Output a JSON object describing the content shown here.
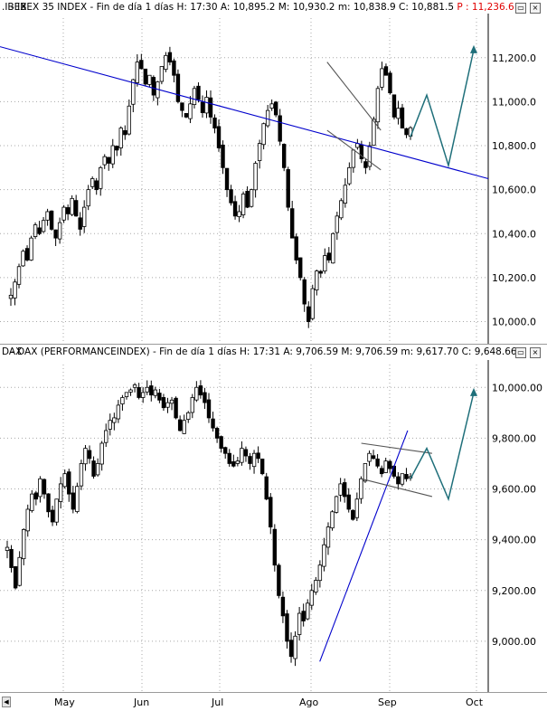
{
  "panels": [
    {
      "id": "ibex",
      "header": {
        "symbol": ".IBEX",
        "text": " - IBEX 35 INDEX - Fin de día 1 días  H: 17:30  A: 10,895.2  M: 10,930.2  m: 10,838.9  C: 10,881.5  ",
        "target": "P : 11,236.6"
      }
    },
    {
      "id": "dax",
      "header": {
        "symbol": "DAX",
        "text": " - DAX (PERFORMANCEINDEX) - Fin de día 1 días  H: 17:31  A: 9,706.59  M: 9,706.59  m: 9,617.70  C: 9,648.66",
        "target": ""
      }
    }
  ],
  "x_axis": {
    "labels": [
      "May",
      "Jun",
      "Jul",
      "Ago",
      "Sep",
      "Oct"
    ]
  },
  "chart_data": [
    {
      "type": "candlestick",
      "title": ".IBEX - IBEX 35 INDEX",
      "x_axis_labels": [
        "May",
        "Jun",
        "Jul",
        "Ago",
        "Sep",
        "Oct"
      ],
      "y_tick_labels": [
        "10,000.0",
        "10,200.0",
        "10,400.0",
        "10,600.0",
        "10,800.0",
        "11,000.0",
        "11,200.0"
      ],
      "ylim": [
        9920,
        11380
      ],
      "grid": true,
      "colors": {
        "up": "#ffffff",
        "down": "#000000",
        "trendline": "#0000cc",
        "channel": "#555555",
        "projection": "#1f6f7a"
      },
      "close_series": [
        10120,
        10180,
        10250,
        10320,
        10280,
        10380,
        10440,
        10400,
        10460,
        10500,
        10420,
        10380,
        10450,
        10520,
        10490,
        10560,
        10480,
        10420,
        10520,
        10600,
        10650,
        10600,
        10700,
        10750,
        10720,
        10800,
        10780,
        10880,
        10850,
        10980,
        11100,
        11180,
        11150,
        11080,
        11120,
        11030,
        11090,
        11160,
        11210,
        11180,
        11120,
        11000,
        10960,
        10930,
        10990,
        11060,
        11010,
        10950,
        11020,
        10930,
        10880,
        10790,
        10700,
        10600,
        10540,
        10480,
        10500,
        10580,
        10520,
        10600,
        10720,
        10810,
        10900,
        10960,
        10990,
        10940,
        10820,
        10700,
        10520,
        10380,
        10280,
        10200,
        10080,
        10000,
        10150,
        10230,
        10220,
        10300,
        10280,
        10400,
        10480,
        10550,
        10620,
        10700,
        10780,
        10810,
        10740,
        10700,
        10800,
        10920,
        11060,
        11150,
        11120,
        11040,
        10930,
        10970,
        10880,
        10850,
        10881.5
      ],
      "annotations": {
        "trendline": [
          [
            0.0,
            11250
          ],
          [
            1.0,
            10650
          ]
        ],
        "channel_upper": [
          [
            0.67,
            11180
          ],
          [
            0.78,
            10870
          ]
        ],
        "channel_lower": [
          [
            0.67,
            10870
          ],
          [
            0.78,
            10690
          ]
        ],
        "projection": [
          10840,
          11030,
          10710,
          11236.6
        ]
      }
    },
    {
      "type": "candlestick",
      "title": "DAX - DAX (PERFORMANCEINDEX)",
      "x_axis_labels": [
        "May",
        "Jun",
        "Jul",
        "Ago",
        "Sep",
        "Oct"
      ],
      "y_tick_labels": [
        "9,000.00",
        "9,200.00",
        "9,400.00",
        "9,600.00",
        "9,800.00",
        "10,000.00"
      ],
      "ylim": [
        8850,
        10090
      ],
      "grid": true,
      "colors": {
        "up": "#ffffff",
        "down": "#000000",
        "trendline": "#0000cc",
        "channel": "#555555",
        "projection": "#1f6f7a"
      },
      "close_series": [
        9370,
        9290,
        9210,
        9330,
        9440,
        9520,
        9580,
        9560,
        9640,
        9580,
        9510,
        9470,
        9560,
        9620,
        9660,
        9580,
        9520,
        9610,
        9700,
        9760,
        9720,
        9650,
        9700,
        9780,
        9830,
        9870,
        9880,
        9930,
        9960,
        9980,
        9990,
        10010,
        9960,
        9980,
        10000,
        9970,
        9990,
        9950,
        9920,
        9940,
        9950,
        9880,
        9830,
        9870,
        9900,
        9960,
        10000,
        9970,
        9940,
        9880,
        9840,
        9800,
        9760,
        9740,
        9700,
        9690,
        9710,
        9760,
        9730,
        9700,
        9740,
        9720,
        9660,
        9560,
        9450,
        9300,
        9180,
        9100,
        9000,
        8940,
        9020,
        9110,
        9080,
        9150,
        9200,
        9240,
        9300,
        9380,
        9450,
        9510,
        9570,
        9620,
        9570,
        9520,
        9480,
        9560,
        9640,
        9700,
        9740,
        9720,
        9690,
        9660,
        9710,
        9680,
        9650,
        9620,
        9660,
        9640,
        9648.66
      ],
      "annotations": {
        "trendline": [
          [
            0.655,
            8920
          ],
          [
            0.835,
            9830
          ]
        ],
        "channel_upper": [
          [
            0.74,
            9780
          ],
          [
            0.885,
            9740
          ]
        ],
        "channel_lower": [
          [
            0.74,
            9640
          ],
          [
            0.885,
            9570
          ]
        ],
        "projection": [
          9640,
          9760,
          9560,
          9980
        ]
      }
    }
  ]
}
